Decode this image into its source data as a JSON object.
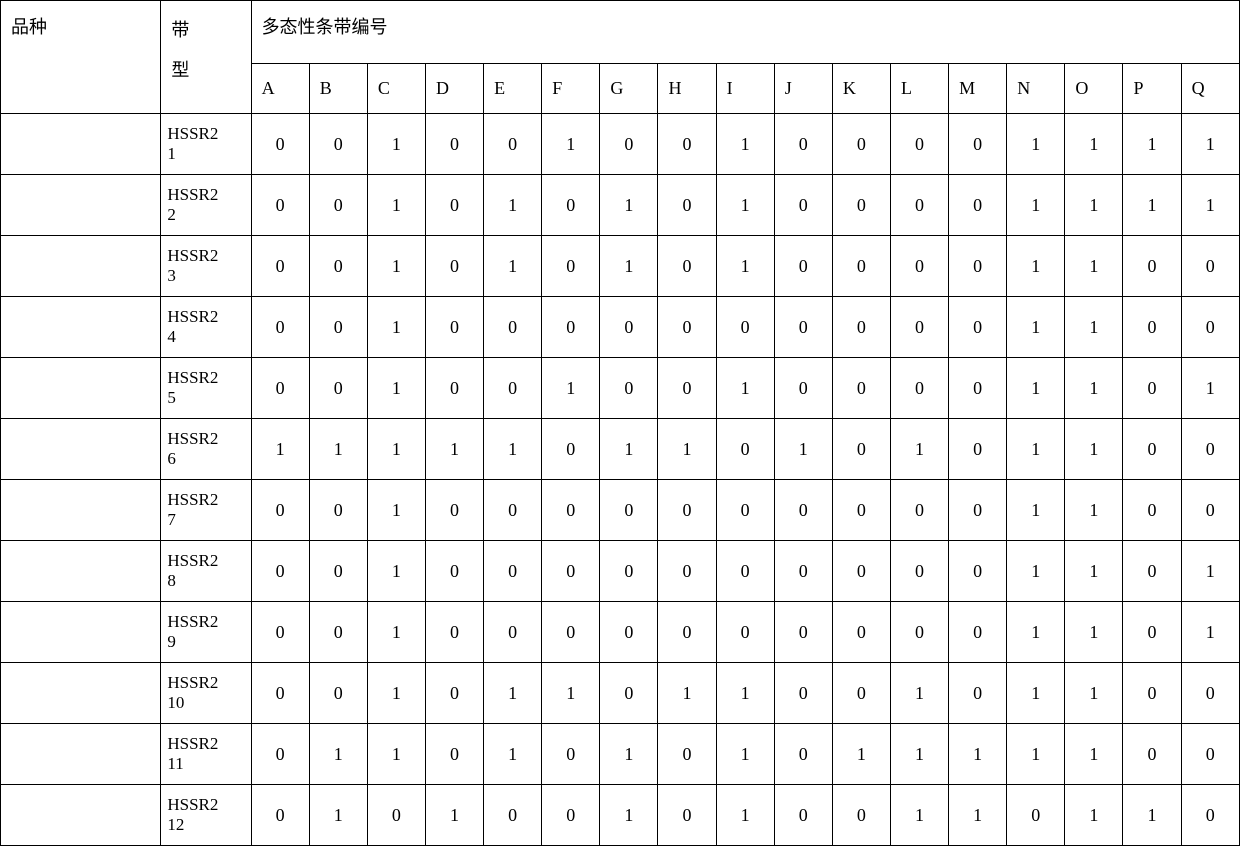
{
  "headers": {
    "variety": "品种",
    "type": "带型",
    "group": "多态性条带编号"
  },
  "columns": [
    "A",
    "B",
    "C",
    "D",
    "E",
    "F",
    "G",
    "H",
    "I",
    "J",
    "K",
    "L",
    "M",
    "N",
    "O",
    "P",
    "Q"
  ],
  "rows": [
    {
      "variety": "",
      "type": "HSSR2-1",
      "values": [
        0,
        0,
        1,
        0,
        0,
        1,
        0,
        0,
        1,
        0,
        0,
        0,
        0,
        1,
        1,
        1,
        1
      ]
    },
    {
      "variety": "",
      "type": "HSSR2-2",
      "values": [
        0,
        0,
        1,
        0,
        1,
        0,
        1,
        0,
        1,
        0,
        0,
        0,
        0,
        1,
        1,
        1,
        1
      ]
    },
    {
      "variety": "",
      "type": "HSSR2-3",
      "values": [
        0,
        0,
        1,
        0,
        1,
        0,
        1,
        0,
        1,
        0,
        0,
        0,
        0,
        1,
        1,
        0,
        0
      ]
    },
    {
      "variety": "",
      "type": "HSSR2-4",
      "values": [
        0,
        0,
        1,
        0,
        0,
        0,
        0,
        0,
        0,
        0,
        0,
        0,
        0,
        1,
        1,
        0,
        0
      ]
    },
    {
      "variety": "",
      "type": "HSSR2-5",
      "values": [
        0,
        0,
        1,
        0,
        0,
        1,
        0,
        0,
        1,
        0,
        0,
        0,
        0,
        1,
        1,
        0,
        1
      ]
    },
    {
      "variety": "",
      "type": "HSSR2-6",
      "values": [
        1,
        1,
        1,
        1,
        1,
        0,
        1,
        1,
        0,
        1,
        0,
        1,
        0,
        1,
        1,
        0,
        0
      ]
    },
    {
      "variety": "",
      "type": "HSSR2-7",
      "values": [
        0,
        0,
        1,
        0,
        0,
        0,
        0,
        0,
        0,
        0,
        0,
        0,
        0,
        1,
        1,
        0,
        0
      ]
    },
    {
      "variety": "",
      "type": "HSSR2-8",
      "values": [
        0,
        0,
        1,
        0,
        0,
        0,
        0,
        0,
        0,
        0,
        0,
        0,
        0,
        1,
        1,
        0,
        1
      ]
    },
    {
      "variety": "",
      "type": "HSSR2-9",
      "values": [
        0,
        0,
        1,
        0,
        0,
        0,
        0,
        0,
        0,
        0,
        0,
        0,
        0,
        1,
        1,
        0,
        1
      ]
    },
    {
      "variety": "",
      "type": "HSSR2-10",
      "values": [
        0,
        0,
        1,
        0,
        1,
        1,
        0,
        1,
        1,
        0,
        0,
        1,
        0,
        1,
        1,
        0,
        0
      ]
    },
    {
      "variety": "",
      "type": "HSSR2-11",
      "values": [
        0,
        1,
        1,
        0,
        1,
        0,
        1,
        0,
        1,
        0,
        1,
        1,
        1,
        1,
        1,
        0,
        0
      ]
    },
    {
      "variety": "",
      "type": "HSSR2-12",
      "values": [
        0,
        1,
        0,
        1,
        0,
        0,
        1,
        0,
        1,
        0,
        0,
        1,
        1,
        0,
        1,
        1,
        0
      ]
    }
  ],
  "style": {
    "font_color": "#000000",
    "border_color": "#000000",
    "background_color": "#ffffff",
    "header_fontsize": 18,
    "cell_fontsize": 18,
    "type_fontsize": 17
  }
}
